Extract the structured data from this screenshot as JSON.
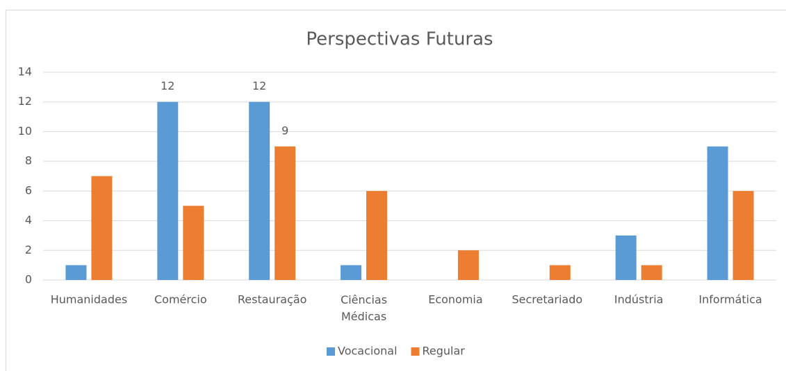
{
  "chart_data": {
    "type": "bar",
    "title": "Perspectivas Futuras",
    "categories": [
      "Humanidades",
      "Comércio",
      "Restauração",
      "Ciências Médicas",
      "Economia",
      "Secretariado",
      "Indústria",
      "Informática"
    ],
    "series": [
      {
        "name": "Vocacional",
        "color": "#5b9bd5",
        "values": [
          1,
          12,
          12,
          1,
          0,
          0,
          3,
          9
        ],
        "value_labels": [
          null,
          12,
          12,
          null,
          null,
          null,
          null,
          null
        ]
      },
      {
        "name": "Regular",
        "color": "#ed7d31",
        "values": [
          7,
          5,
          9,
          6,
          2,
          1,
          1,
          6
        ],
        "value_labels": [
          null,
          null,
          9,
          null,
          null,
          null,
          null,
          null
        ]
      }
    ],
    "ylim": [
      0,
      14
    ],
    "yticks": [
      0,
      2,
      4,
      6,
      8,
      10,
      12,
      14
    ],
    "grid": true,
    "legend": "bottom"
  }
}
